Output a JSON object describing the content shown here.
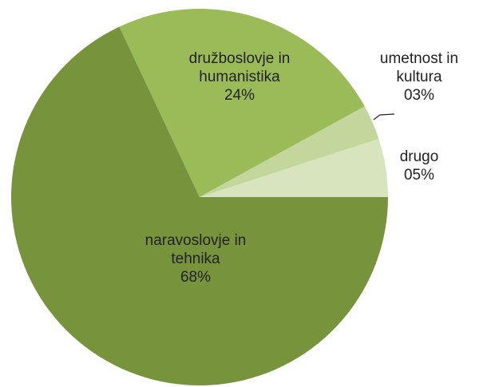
{
  "chart_data": {
    "type": "pie",
    "categories": [
      "drugo",
      "umetnost in kultura",
      "družboslovje in humanistika",
      "naravoslovje in tehnika"
    ],
    "values": [
      5,
      3,
      24,
      68
    ],
    "value_labels": [
      "05%",
      "03%",
      "24%",
      "68%"
    ],
    "colors": [
      "#d7e4bd",
      "#c3d69b",
      "#9bbb59",
      "#77933c"
    ]
  }
}
